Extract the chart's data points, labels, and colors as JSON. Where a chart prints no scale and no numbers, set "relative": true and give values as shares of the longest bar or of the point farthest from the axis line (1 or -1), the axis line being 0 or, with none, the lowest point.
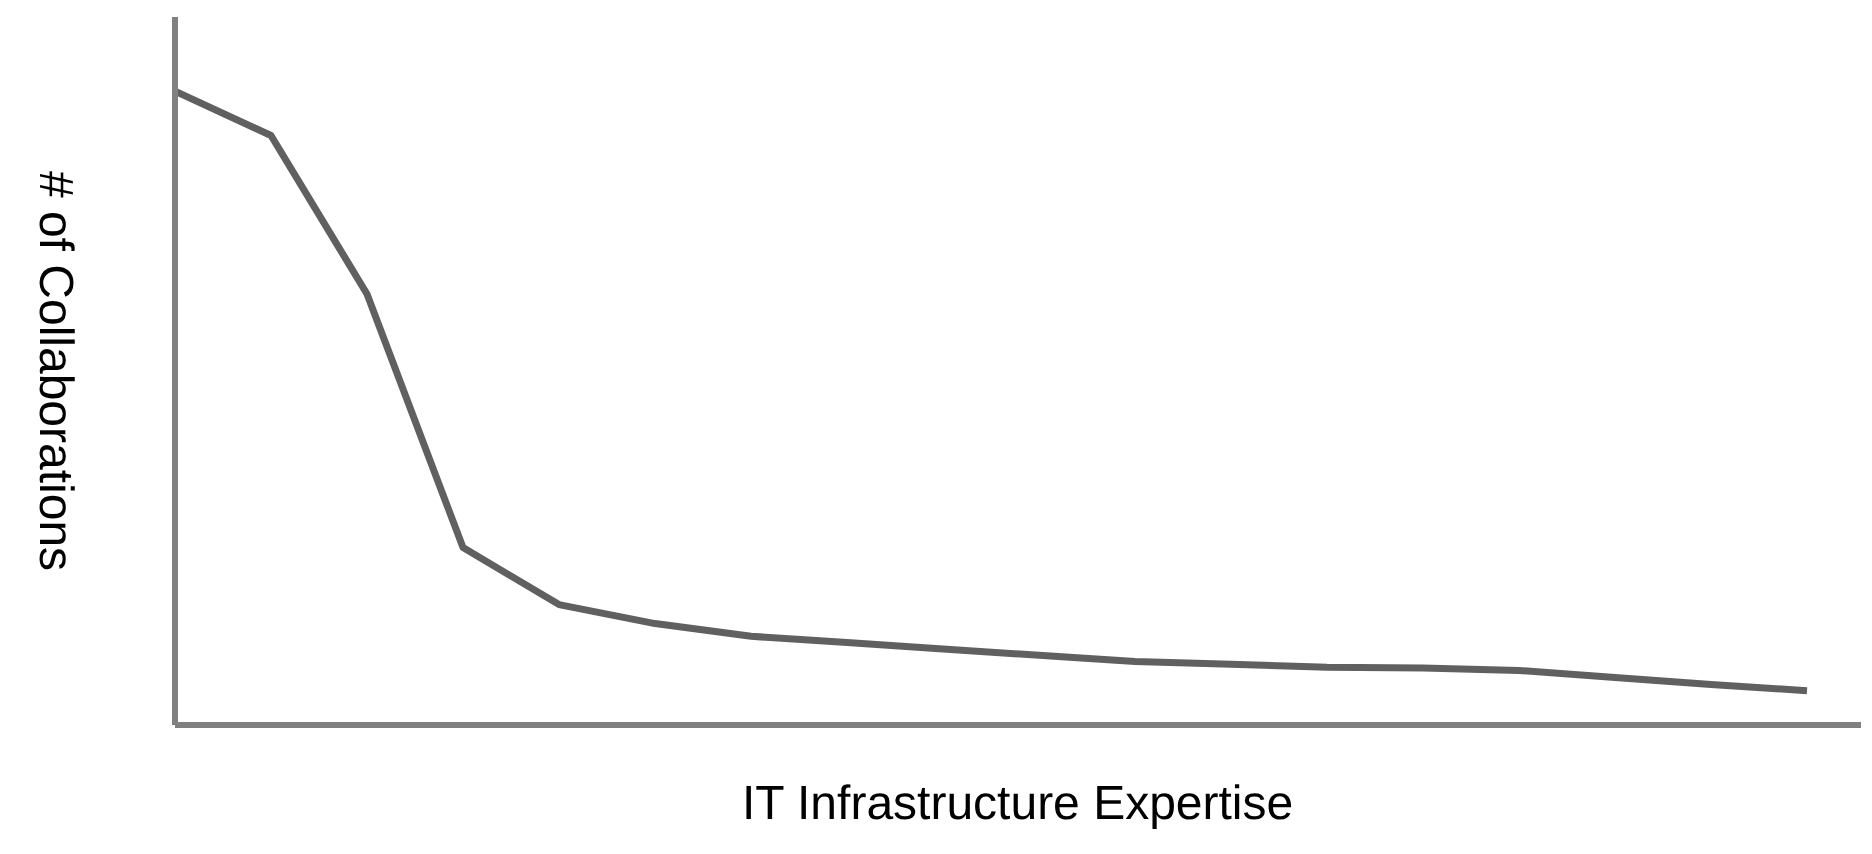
{
  "chart_data": {
    "type": "line",
    "relative": true,
    "xlabel": "IT Infrastructure Expertise",
    "ylabel": "# of Collaborations",
    "marker": "none",
    "line_style": "solid",
    "categories": [
      null,
      null,
      null,
      null,
      null,
      null,
      null,
      null,
      null,
      null,
      null,
      null,
      null,
      null,
      null,
      null,
      null,
      null
    ],
    "series": [
      {
        "color": "#606060",
        "values": [
          1.0,
          0.93,
          0.68,
          0.28,
          0.19,
          0.16,
          0.14,
          0.13,
          0.12,
          0.11,
          0.1,
          0.096,
          0.091,
          0.09,
          0.086,
          0.075,
          0.064,
          0.054
        ]
      }
    ]
  }
}
